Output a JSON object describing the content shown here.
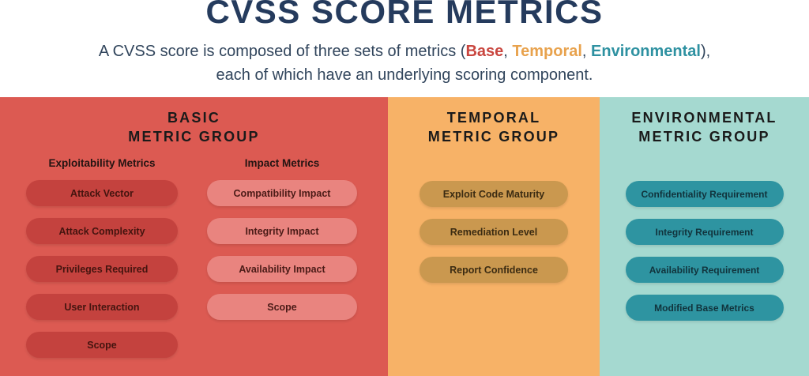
{
  "page": {
    "title": "CVSS SCORE METRICS",
    "subtitle": {
      "prefix": "A CVSS score is composed of three sets of metrics (",
      "base": "Base",
      "sep1": ", ",
      "temporal": "Temporal",
      "sep2": ", ",
      "environmental": "Environmental",
      "suffix": "),",
      "line2": "each of which have an underlying scoring component."
    }
  },
  "colors": {
    "title_navy": "#253B5D",
    "body_text": "#31455C",
    "base_red": "#C9463F",
    "temporal_orange": "#E8A24D",
    "environmental_teal": "#2E91A1",
    "basic_panel_bg": "#DC5A52",
    "basic_pill_dark": "#C4423E",
    "basic_pill_light": "#E9847F",
    "temporal_panel_bg": "#F7B267",
    "temporal_pill": "#CA984F",
    "environmental_panel_bg": "#A5D9D0",
    "environmental_pill": "#2E94A1"
  },
  "panels": {
    "basic": {
      "title_line1": "BASIC",
      "title_line2": "METRIC GROUP",
      "columns": [
        {
          "heading": "Exploitability Metrics",
          "pills": [
            "Attack Vector",
            "Attack Complexity",
            "Privileges Required",
            "User Interaction",
            "Scope"
          ]
        },
        {
          "heading": "Impact Metrics",
          "pills": [
            "Compatibility Impact",
            "Integrity Impact",
            "Availability Impact",
            "Scope"
          ]
        }
      ]
    },
    "temporal": {
      "title_line1": "TEMPORAL",
      "title_line2": "METRIC GROUP",
      "pills": [
        "Exploit Code Maturity",
        "Remediation Level",
        "Report Confidence"
      ]
    },
    "environmental": {
      "title_line1": "ENVIRONMENTAL",
      "title_line2": "METRIC GROUP",
      "pills": [
        "Confidentiality Requirement",
        "Integrity Requirement",
        "Availability Requirement",
        "Modified Base Metrics"
      ]
    }
  }
}
